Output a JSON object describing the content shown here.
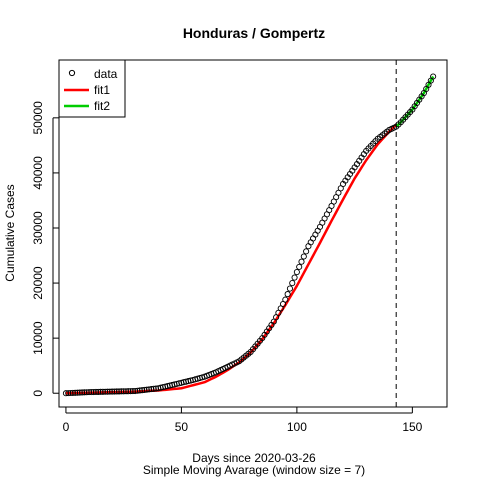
{
  "chart_data": {
    "type": "scatter",
    "title": "Honduras / Gompertz",
    "xlabel": "Days since 2020-03-26",
    "xlabel2": "Simple Moving Avarage (window size = 7)",
    "ylabel": "Cumulative Cases",
    "xlim": [
      -3,
      165
    ],
    "ylim": [
      -2500,
      60500
    ],
    "x_ticks": [
      0,
      50,
      100,
      150
    ],
    "y_ticks": [
      0,
      10000,
      20000,
      30000,
      40000,
      50000
    ],
    "cutoff_x": 143,
    "legend": {
      "position": "top-left",
      "entries": [
        {
          "label": "data",
          "kind": "point",
          "color": "#000000"
        },
        {
          "label": "fit1",
          "kind": "line",
          "color": "#ff0000"
        },
        {
          "label": "fit2",
          "kind": "line",
          "color": "#00cd00"
        }
      ]
    },
    "data_curve": {
      "x": [
        0,
        10,
        20,
        30,
        40,
        50,
        55,
        60,
        65,
        70,
        72,
        75,
        80,
        85,
        90,
        95,
        100,
        105,
        110,
        115,
        120,
        125,
        130,
        135,
        140,
        143
      ],
      "y": [
        0,
        200,
        300,
        400,
        900,
        1900,
        2400,
        3000,
        3800,
        4800,
        5200,
        5800,
        7500,
        10000,
        13000,
        17000,
        22000,
        26700,
        30200,
        34000,
        38000,
        41000,
        44000,
        46200,
        47800,
        48400
      ],
      "step": 1
    },
    "fit1": {
      "x": [
        0,
        10,
        20,
        30,
        40,
        50,
        60,
        65,
        70,
        75,
        80,
        85,
        90,
        95,
        100,
        105,
        110,
        115,
        120,
        125,
        130,
        135,
        140,
        143
      ],
      "y": [
        0,
        100,
        200,
        300,
        500,
        900,
        2000,
        3000,
        4200,
        5600,
        7400,
        9800,
        12700,
        16000,
        19500,
        23400,
        27300,
        31300,
        35200,
        39000,
        42300,
        45200,
        47500,
        48800
      ]
    },
    "fit2": {
      "x": [
        143,
        145,
        150,
        155,
        159
      ],
      "y": [
        48400,
        49200,
        51500,
        54500,
        57500
      ]
    },
    "colors": {
      "points": "#000000",
      "fit1": "#ff0000",
      "fit2": "#00cd00",
      "cutoff": "#000000"
    }
  }
}
